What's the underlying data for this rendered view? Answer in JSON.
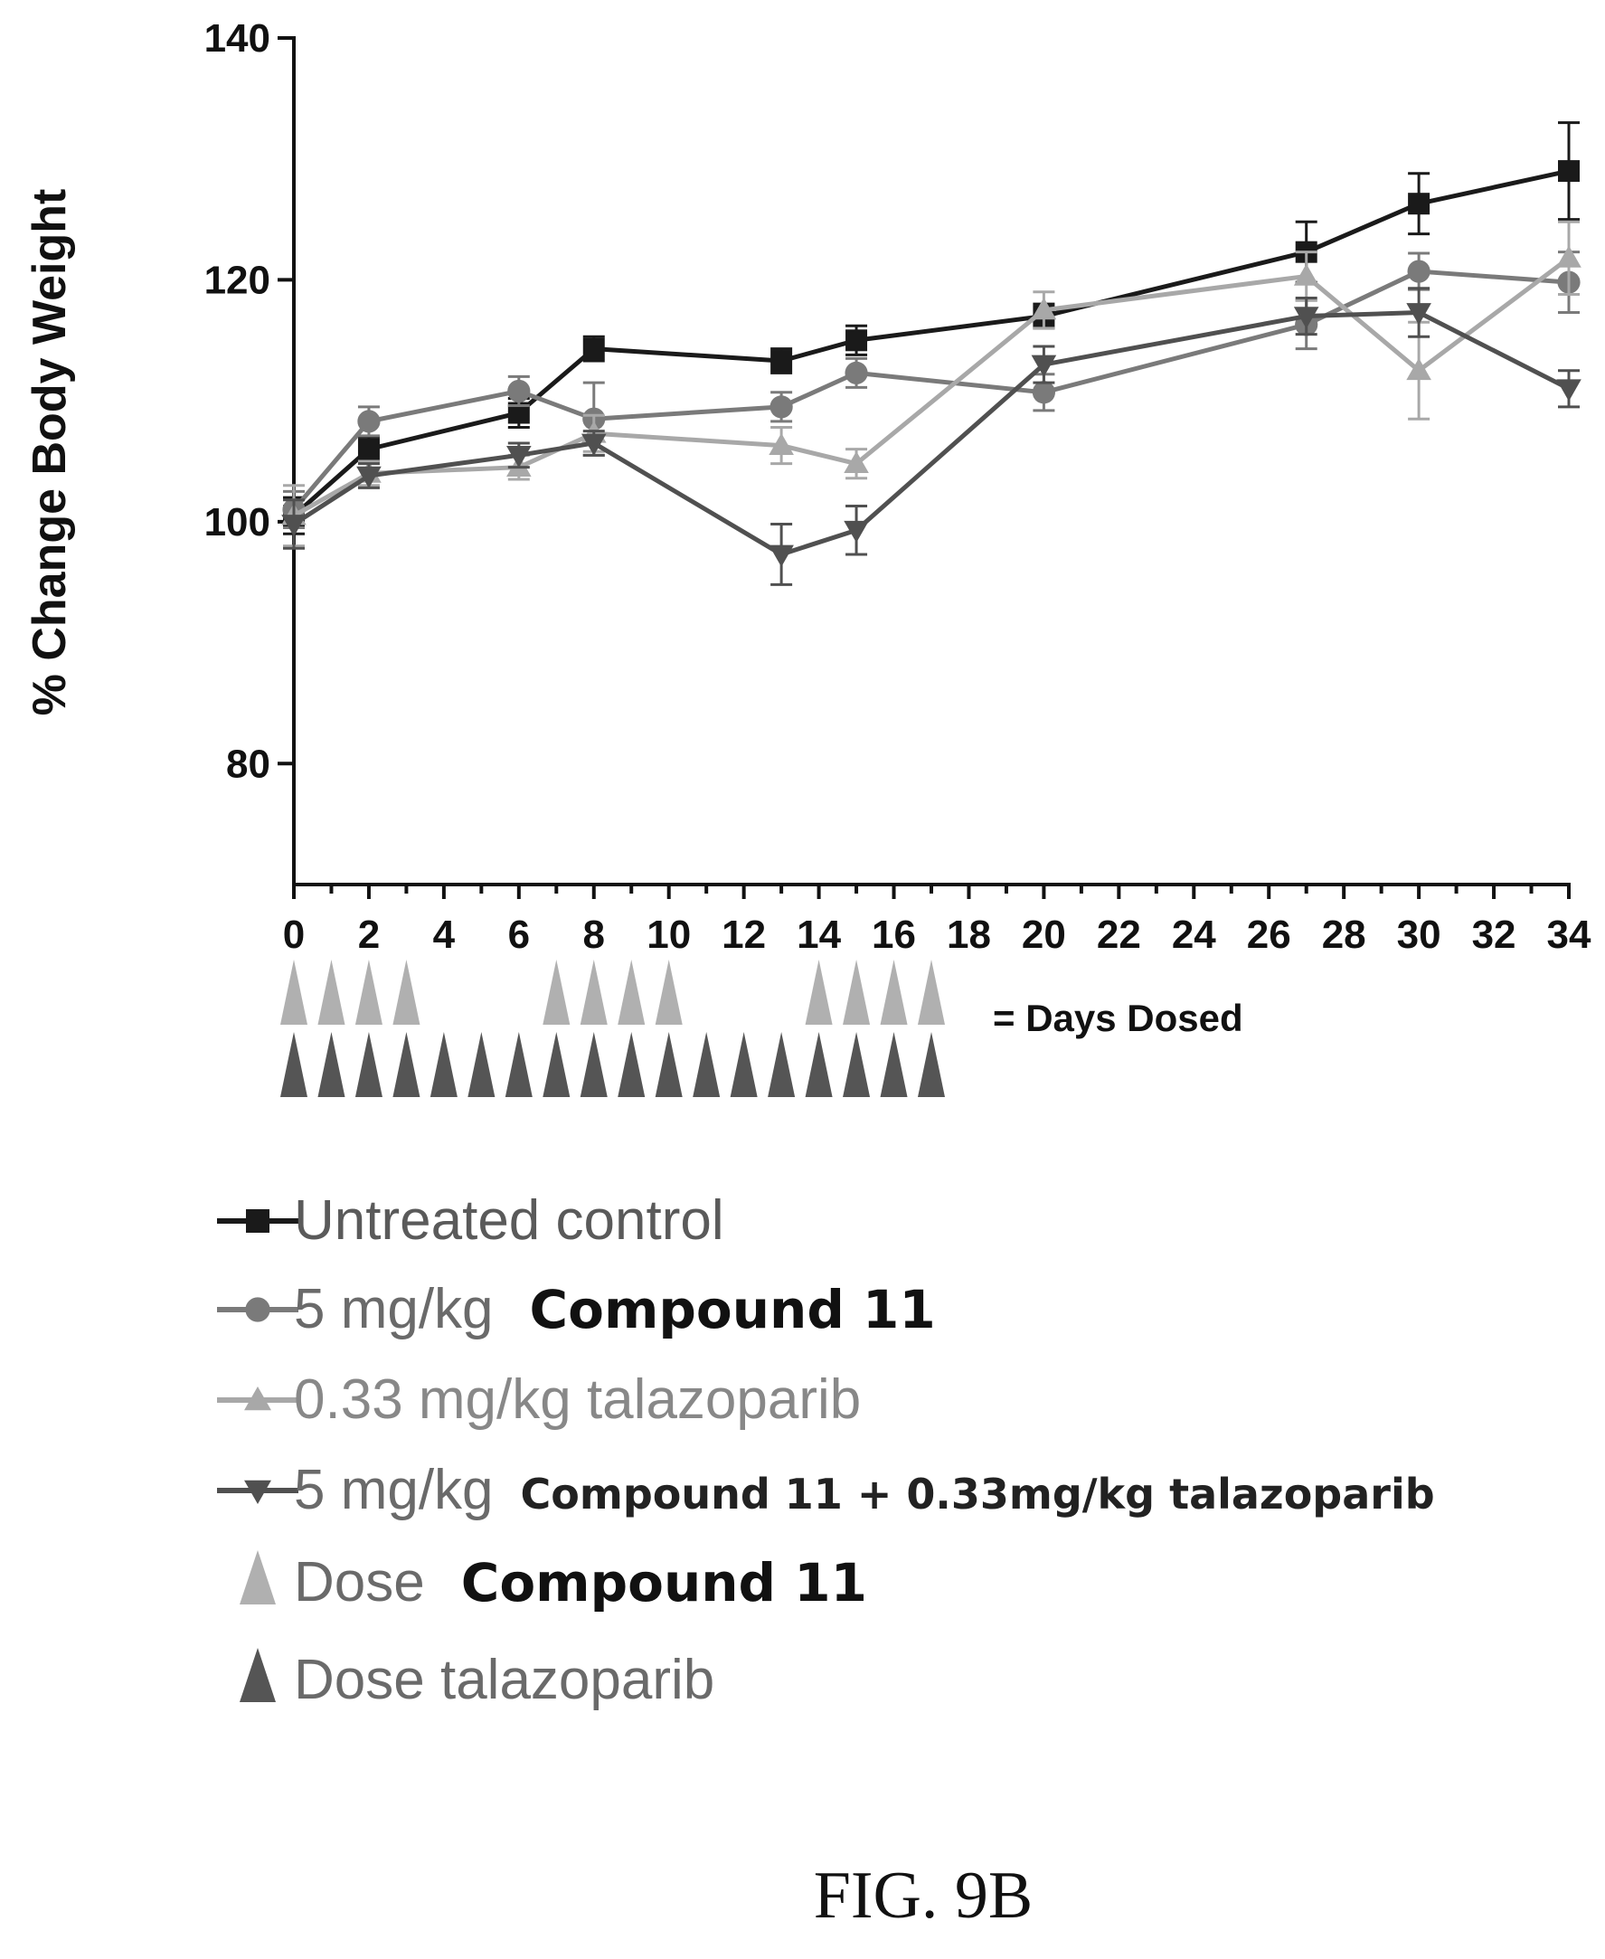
{
  "chart_data": {
    "type": "line",
    "title": "",
    "xlabel": "",
    "ylabel": "% Change Body Weight",
    "xlim": [
      0,
      34
    ],
    "ylim": [
      70,
      140
    ],
    "x_ticks": [
      0,
      2,
      4,
      6,
      8,
      10,
      12,
      14,
      16,
      18,
      20,
      22,
      24,
      26,
      28,
      30,
      32,
      34
    ],
    "y_ticks": [
      80,
      100,
      120,
      140
    ],
    "grid": false,
    "legend_position": "bottom",
    "series": [
      {
        "name": "Untreated control",
        "marker": "square",
        "color": "#1a1a1a",
        "x": [
          0,
          2,
          6,
          8,
          13,
          15,
          20,
          27,
          30,
          34
        ],
        "y": [
          100.5,
          106,
          109,
          114.3,
          113.3,
          115,
          117,
          122.3,
          126.3,
          129
        ],
        "err": [
          1.5,
          1.0,
          1.2,
          1.0,
          1.0,
          1.2,
          1.0,
          2.5,
          2.5,
          4.0
        ]
      },
      {
        "name": "5 mg/kg Compound 11",
        "marker": "circle",
        "color": "#7a7a7a",
        "x": [
          0,
          2,
          6,
          8,
          13,
          15,
          20,
          27,
          30,
          34
        ],
        "y": [
          101,
          108.3,
          110.8,
          108.5,
          109.5,
          112.3,
          110.7,
          116.3,
          120.7,
          119.8
        ],
        "err": [
          1.5,
          1.2,
          1.2,
          3.0,
          1.2,
          1.2,
          1.5,
          2.0,
          1.5,
          2.5
        ]
      },
      {
        "name": "0.33 mg/kg talazoparib",
        "marker": "triangle-up",
        "color": "#a8a8a8",
        "x": [
          0,
          2,
          6,
          8,
          13,
          15,
          20,
          27,
          30,
          34
        ],
        "y": [
          100.5,
          104,
          104.5,
          107.3,
          106.3,
          104.8,
          117.5,
          120.3,
          112.5,
          121.8
        ],
        "err": [
          2.5,
          1.0,
          1.0,
          1.5,
          1.5,
          1.2,
          1.5,
          2.0,
          4.0,
          3.0
        ]
      },
      {
        "name": "5 mg/kg Compound 11 + 0.33mg/kg talazoparib",
        "marker": "triangle-down",
        "color": "#505050",
        "x": [
          0,
          2,
          6,
          8,
          13,
          15,
          20,
          27,
          30,
          34
        ],
        "y": [
          99.8,
          103.8,
          105.5,
          106.5,
          97.3,
          99.3,
          113,
          117,
          117.3,
          111
        ],
        "err": [
          2.0,
          1.0,
          1.0,
          1.0,
          2.5,
          2.0,
          1.5,
          1.5,
          2.0,
          1.5
        ]
      }
    ],
    "dose_rows": [
      {
        "name": "Dose Compound 11",
        "color": "#b0b0b0",
        "days": [
          0,
          1,
          2,
          3,
          7,
          8,
          9,
          10,
          14,
          15,
          16,
          17
        ]
      },
      {
        "name": "Dose talazoparib",
        "color": "#555555",
        "days": [
          0,
          1,
          2,
          3,
          4,
          5,
          6,
          7,
          8,
          9,
          10,
          11,
          12,
          13,
          14,
          15,
          16,
          17
        ]
      }
    ]
  },
  "dose_key_label": "= Days Dosed",
  "legend": {
    "items": [
      {
        "prefix": "Untreated control",
        "bold": "",
        "rest": "",
        "color": "#1a1a1a",
        "marker": "square"
      },
      {
        "prefix": "5 mg/kg",
        "bold": "Compound 11",
        "rest": "",
        "color": "#7a7a7a",
        "marker": "circle"
      },
      {
        "prefix": "0.33 mg/kg talazoparib",
        "bold": "",
        "rest": "",
        "color": "#a8a8a8",
        "marker": "triangle-up"
      },
      {
        "prefix": "5 mg/kg",
        "bold": "",
        "rest": "Compound 11 + 0.33mg/kg talazoparib",
        "color": "#505050",
        "marker": "triangle-down"
      },
      {
        "prefix": "Dose",
        "bold": "Compound 11",
        "rest": "",
        "color": "#b0b0b0",
        "marker": "dose-triangle"
      },
      {
        "prefix": "Dose talazoparib",
        "bold": "",
        "rest": "",
        "color": "#555555",
        "marker": "dose-triangle"
      }
    ]
  },
  "figure_caption": "FIG. 9B"
}
